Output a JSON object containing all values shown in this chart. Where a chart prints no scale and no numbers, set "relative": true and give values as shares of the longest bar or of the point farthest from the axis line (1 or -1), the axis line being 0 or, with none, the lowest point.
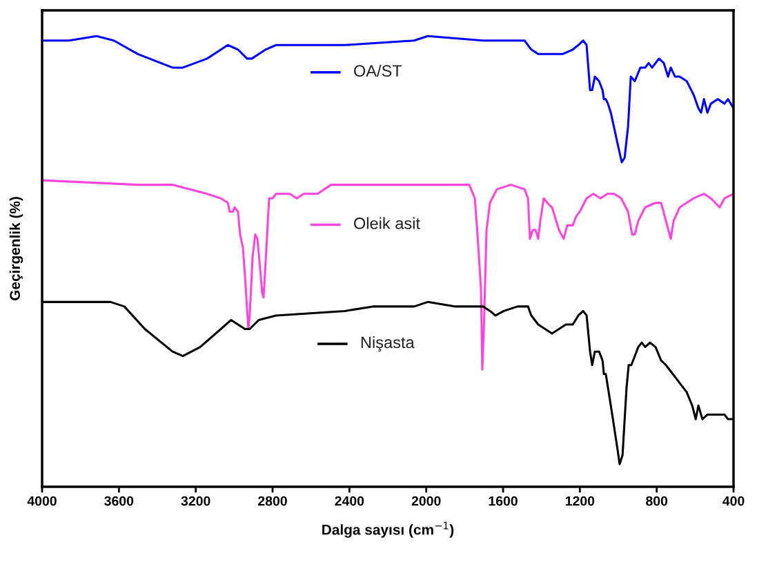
{
  "chart_data": {
    "type": "line",
    "relative": true,
    "xlabel": "Dalga sayısı (cm$^{−1}$)",
    "ylabel": "Geçirgenlik (%)",
    "xlim": [
      4000,
      400
    ],
    "xticks": [
      4000,
      3600,
      3200,
      2800,
      2400,
      2000,
      1600,
      1200,
      800,
      400
    ],
    "grid": false,
    "legend": "center",
    "tick_labels": "x",
    "series": [
      {
        "name": "OA/ST",
        "color": "#0000ff",
        "x": [
          4000,
          3860,
          3716,
          3626,
          3501,
          3321,
          3267,
          3141,
          3033,
          2980,
          2933,
          2908,
          2836,
          2782,
          2423,
          2063,
          1992,
          1704,
          1560,
          1488,
          1453,
          1417,
          1381,
          1345,
          1291,
          1237,
          1208,
          1183,
          1165,
          1147,
          1136,
          1122,
          1100,
          1082,
          1075,
          1065,
          1054,
          1039,
          1003,
          982,
          967,
          949,
          935,
          914,
          885,
          860,
          842,
          824,
          806,
          788,
          763,
          741,
          727,
          705,
          680,
          644,
          608,
          583,
          569,
          554,
          536,
          518,
          482,
          447,
          429,
          400
        ],
        "values": [
          0.99,
          0.99,
          1.0,
          0.99,
          0.96,
          0.93,
          0.93,
          0.95,
          0.98,
          0.97,
          0.95,
          0.95,
          0.97,
          0.98,
          0.98,
          0.99,
          1.0,
          0.99,
          0.99,
          0.99,
          0.97,
          0.96,
          0.96,
          0.96,
          0.96,
          0.97,
          0.98,
          0.99,
          0.98,
          0.88,
          0.88,
          0.91,
          0.9,
          0.88,
          0.86,
          0.86,
          0.85,
          0.83,
          0.76,
          0.72,
          0.73,
          0.8,
          0.91,
          0.9,
          0.93,
          0.93,
          0.94,
          0.93,
          0.94,
          0.95,
          0.94,
          0.91,
          0.93,
          0.91,
          0.91,
          0.9,
          0.87,
          0.84,
          0.83,
          0.86,
          0.83,
          0.85,
          0.86,
          0.85,
          0.86,
          0.84
        ]
      },
      {
        "name": "Oleik asit",
        "color": "#ff44dd",
        "x": [
          4000,
          3501,
          3321,
          3141,
          3069,
          3033,
          3023,
          3008,
          2998,
          2980,
          2969,
          2954,
          2944,
          2926,
          2919,
          2904,
          2890,
          2879,
          2868,
          2854,
          2847,
          2836,
          2818,
          2800,
          2782,
          2710,
          2674,
          2638,
          2566,
          2495,
          2351,
          2063,
          1884,
          1776,
          1747,
          1733,
          1715,
          1708,
          1700,
          1686,
          1668,
          1632,
          1560,
          1488,
          1470,
          1460,
          1445,
          1431,
          1417,
          1406,
          1388,
          1370,
          1345,
          1309,
          1284,
          1266,
          1237,
          1219,
          1201,
          1165,
          1129,
          1093,
          1057,
          1021,
          985,
          949,
          928,
          914,
          896,
          860,
          806,
          777,
          752,
          727,
          712,
          680,
          644,
          608,
          554,
          518,
          472,
          447,
          400
        ],
        "values": [
          0.68,
          0.67,
          0.67,
          0.65,
          0.64,
          0.63,
          0.61,
          0.61,
          0.62,
          0.61,
          0.56,
          0.53,
          0.47,
          0.35,
          0.38,
          0.51,
          0.56,
          0.55,
          0.5,
          0.43,
          0.42,
          0.5,
          0.64,
          0.64,
          0.65,
          0.65,
          0.64,
          0.65,
          0.65,
          0.67,
          0.67,
          0.67,
          0.67,
          0.67,
          0.64,
          0.56,
          0.44,
          0.26,
          0.35,
          0.57,
          0.63,
          0.66,
          0.67,
          0.66,
          0.64,
          0.55,
          0.57,
          0.57,
          0.55,
          0.59,
          0.64,
          0.63,
          0.62,
          0.57,
          0.55,
          0.58,
          0.58,
          0.6,
          0.61,
          0.64,
          0.65,
          0.64,
          0.65,
          0.65,
          0.64,
          0.61,
          0.56,
          0.56,
          0.59,
          0.62,
          0.63,
          0.63,
          0.59,
          0.55,
          0.59,
          0.62,
          0.63,
          0.64,
          0.65,
          0.64,
          0.62,
          0.64,
          0.65
        ]
      },
      {
        "name": "Nişasta",
        "color": "#000000",
        "x": [
          4000,
          3860,
          3716,
          3644,
          3572,
          3465,
          3321,
          3267,
          3177,
          3069,
          3016,
          2980,
          2944,
          2919,
          2872,
          2782,
          2423,
          2279,
          2160,
          2063,
          1992,
          1848,
          1740,
          1704,
          1668,
          1639,
          1596,
          1524,
          1470,
          1453,
          1417,
          1381,
          1345,
          1309,
          1273,
          1237,
          1208,
          1183,
          1165,
          1147,
          1136,
          1122,
          1100,
          1082,
          1075,
          1065,
          1050,
          1028,
          1003,
          993,
          978,
          957,
          946,
          932,
          896,
          878,
          860,
          835,
          806,
          777,
          752,
          716,
          680,
          644,
          615,
          597,
          583,
          562,
          536,
          500,
          465,
          447,
          429,
          400
        ],
        "values": [
          0.41,
          0.41,
          0.41,
          0.41,
          0.4,
          0.35,
          0.3,
          0.29,
          0.31,
          0.35,
          0.37,
          0.36,
          0.35,
          0.35,
          0.37,
          0.38,
          0.39,
          0.4,
          0.4,
          0.4,
          0.41,
          0.4,
          0.4,
          0.4,
          0.39,
          0.38,
          0.39,
          0.4,
          0.4,
          0.38,
          0.36,
          0.35,
          0.34,
          0.35,
          0.36,
          0.36,
          0.38,
          0.39,
          0.38,
          0.3,
          0.27,
          0.3,
          0.3,
          0.28,
          0.25,
          0.25,
          0.21,
          0.15,
          0.08,
          0.05,
          0.07,
          0.22,
          0.27,
          0.27,
          0.31,
          0.32,
          0.31,
          0.32,
          0.31,
          0.28,
          0.27,
          0.25,
          0.23,
          0.21,
          0.18,
          0.15,
          0.18,
          0.15,
          0.16,
          0.16,
          0.16,
          0.16,
          0.15,
          0.15
        ]
      }
    ]
  }
}
